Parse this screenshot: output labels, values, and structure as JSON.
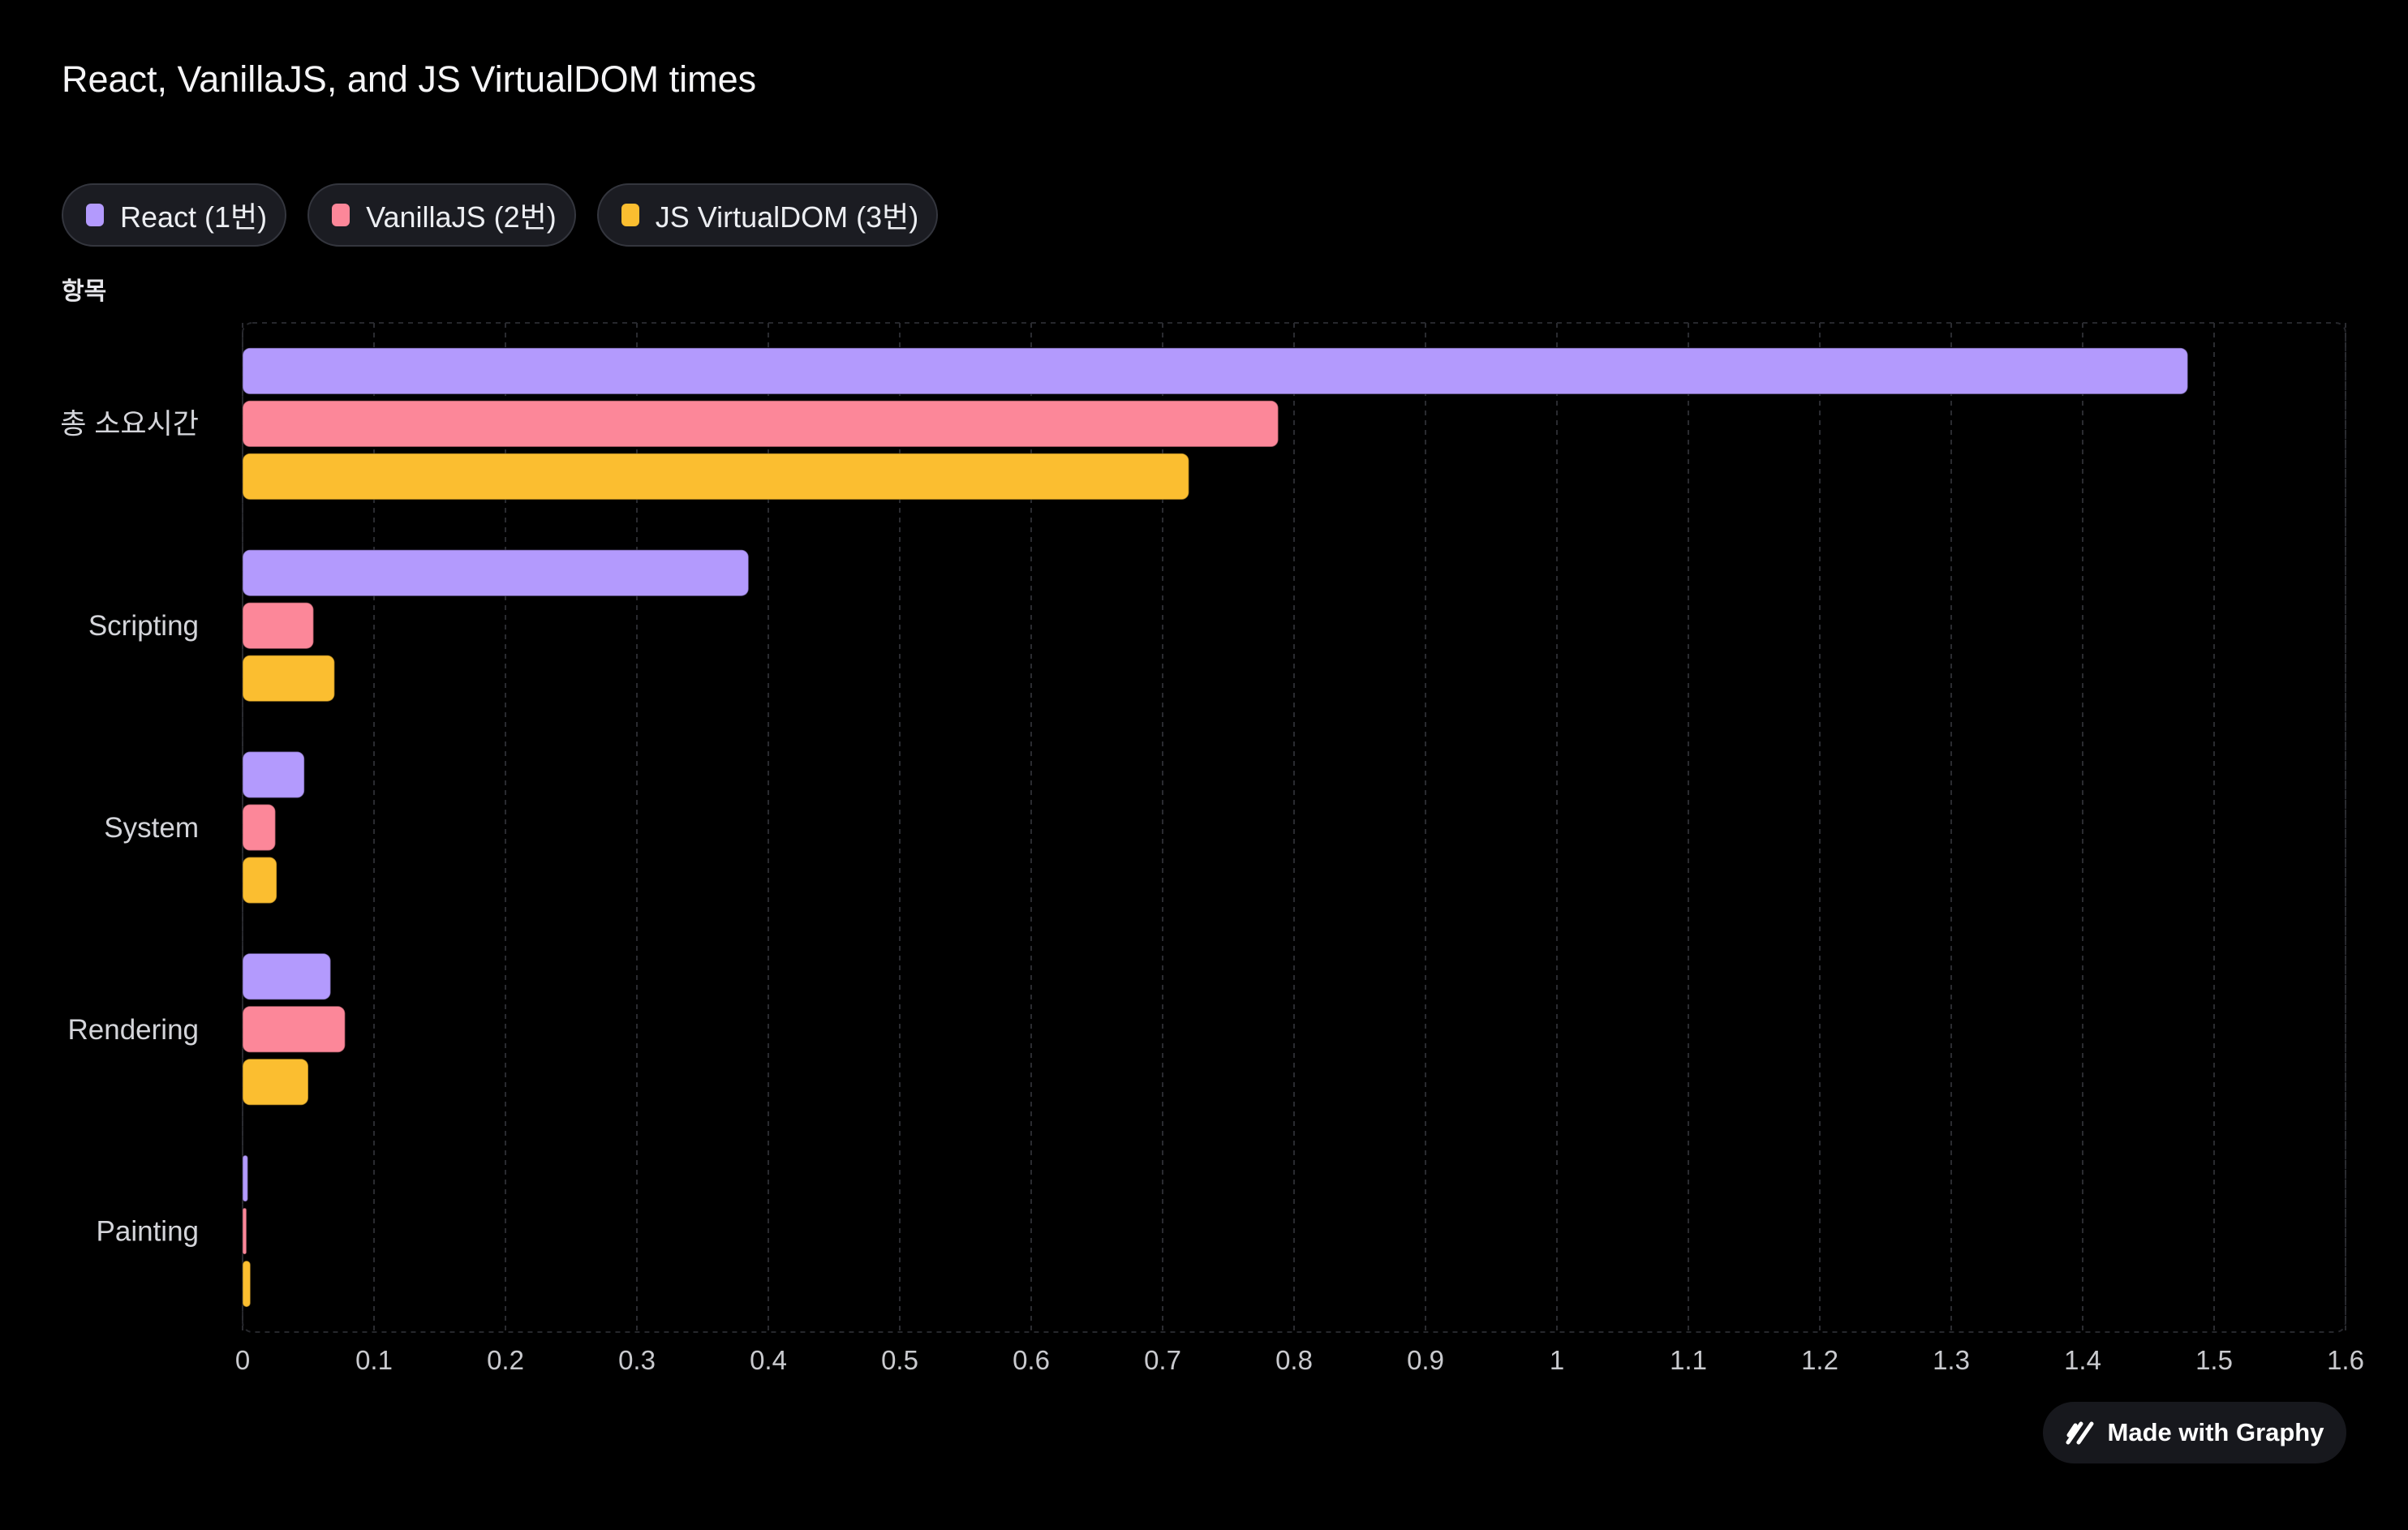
{
  "chart_data": {
    "type": "bar",
    "orientation": "horizontal",
    "title": "React, VanillaJS, and JS VirtualDOM times",
    "ylabel": "항목",
    "xlabel": "",
    "categories": [
      "총 소요시간",
      "Scripting",
      "System",
      "Rendering",
      "Painting"
    ],
    "series": [
      {
        "name": "React (1번)",
        "color": "#b39afd",
        "values": [
          1.48,
          0.385,
          0.047,
          0.067,
          0.004
        ]
      },
      {
        "name": "VanillaJS (2번)",
        "color": "#fc8799",
        "values": [
          0.788,
          0.054,
          0.025,
          0.078,
          0.003
        ]
      },
      {
        "name": "JS VirtualDOM (3번)",
        "color": "#fbbe30",
        "values": [
          0.72,
          0.07,
          0.026,
          0.05,
          0.006
        ]
      }
    ],
    "xlim": [
      0,
      1.6
    ],
    "xticks": [
      "0",
      "0.1",
      "0.2",
      "0.3",
      "0.4",
      "0.5",
      "0.6",
      "0.7",
      "0.8",
      "0.9",
      "1",
      "1.1",
      "1.2",
      "1.3",
      "1.4",
      "1.5",
      "1.6"
    ],
    "grid": true,
    "legend_position": "top-left"
  },
  "badge": {
    "label": "Made with Graphy",
    "icon": "graphy-logo-icon"
  }
}
